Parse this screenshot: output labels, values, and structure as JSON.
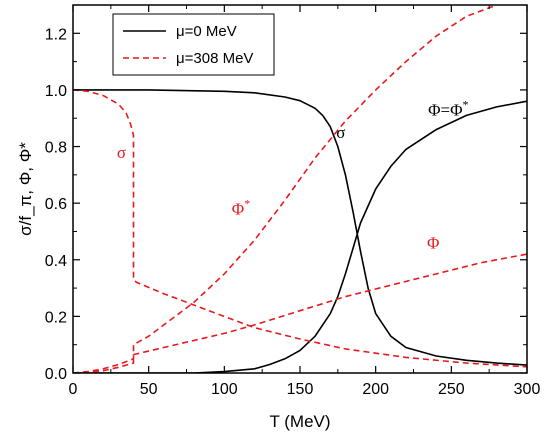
{
  "chart_data": {
    "type": "line",
    "xlabel": "T (MeV)",
    "ylabel": "σ/f_π, Φ, Φ*",
    "xlim": [
      0,
      300
    ],
    "ylim": [
      0,
      1.3
    ],
    "xticks": [
      "0",
      "50",
      "100",
      "150",
      "200",
      "250",
      "300"
    ],
    "yticks": [
      "0.0",
      "0.2",
      "0.4",
      "0.6",
      "0.8",
      "1.0",
      "1.2"
    ],
    "legend": {
      "placement": "top-left"
    },
    "colors": {
      "mu0": "#000000",
      "mu308": "#e8191d"
    },
    "series": [
      {
        "name": "μ=0 MeV",
        "key": "mu0",
        "quantity": "σ",
        "dash": "solid",
        "x": [
          0,
          50,
          100,
          120,
          140,
          150,
          160,
          165,
          170,
          175,
          180,
          185,
          190,
          195,
          200,
          210,
          220,
          240,
          260,
          280,
          300
        ],
        "y": [
          1.0,
          1.0,
          0.995,
          0.99,
          0.975,
          0.962,
          0.935,
          0.91,
          0.87,
          0.8,
          0.7,
          0.57,
          0.43,
          0.3,
          0.21,
          0.13,
          0.09,
          0.06,
          0.045,
          0.035,
          0.028
        ]
      },
      {
        "name": "μ=0 MeV",
        "key": "mu0",
        "quantity": "Φ=Φ*",
        "dash": "solid",
        "x": [
          0,
          80,
          100,
          120,
          130,
          140,
          150,
          160,
          170,
          175,
          180,
          185,
          190,
          200,
          210,
          220,
          240,
          260,
          280,
          300
        ],
        "y": [
          0.0,
          0.0,
          0.005,
          0.015,
          0.03,
          0.05,
          0.08,
          0.13,
          0.21,
          0.27,
          0.35,
          0.44,
          0.53,
          0.65,
          0.73,
          0.79,
          0.86,
          0.91,
          0.94,
          0.96
        ]
      },
      {
        "name": "μ=308 MeV",
        "key": "mu308",
        "quantity": "σ",
        "dash": "dashed",
        "x": [
          0,
          10,
          20,
          30,
          35,
          38,
          40,
          40,
          40,
          42,
          60,
          80,
          100,
          120,
          150,
          180,
          220,
          260,
          300
        ],
        "y": [
          1.0,
          0.995,
          0.98,
          0.95,
          0.92,
          0.88,
          0.84,
          0.5,
          0.33,
          0.32,
          0.28,
          0.24,
          0.2,
          0.16,
          0.12,
          0.085,
          0.055,
          0.035,
          0.022
        ]
      },
      {
        "name": "μ=308 MeV",
        "key": "mu308",
        "quantity": "Φ*",
        "dash": "dashed",
        "x": [
          0,
          10,
          20,
          30,
          40,
          40,
          50,
          60,
          80,
          100,
          120,
          140,
          160,
          180,
          200,
          220,
          240,
          260,
          280
        ],
        "y": [
          0.0,
          0.005,
          0.015,
          0.03,
          0.05,
          0.1,
          0.13,
          0.17,
          0.25,
          0.35,
          0.47,
          0.61,
          0.76,
          0.89,
          1.0,
          1.1,
          1.19,
          1.26,
          1.3
        ]
      },
      {
        "name": "μ=308 MeV",
        "key": "mu308",
        "quantity": "Φ",
        "dash": "dashed",
        "x": [
          0,
          10,
          20,
          30,
          40,
          40,
          60,
          80,
          100,
          120,
          150,
          180,
          210,
          240,
          270,
          300
        ],
        "y": [
          0.0,
          0.002,
          0.008,
          0.02,
          0.035,
          0.065,
          0.09,
          0.115,
          0.14,
          0.17,
          0.22,
          0.27,
          0.31,
          0.35,
          0.39,
          0.42
        ]
      }
    ],
    "annotations": [
      {
        "text": "σ",
        "x": 177,
        "y": 0.83,
        "key": "mu0"
      },
      {
        "text": "Φ=Φ*",
        "x": 248,
        "y": 0.91,
        "key": "mu0"
      },
      {
        "text": "σ",
        "x": 32,
        "y": 0.76,
        "key": "mu308"
      },
      {
        "text": "Φ*",
        "x": 111,
        "y": 0.56,
        "key": "mu308"
      },
      {
        "text": "Φ",
        "x": 238,
        "y": 0.44,
        "key": "mu308"
      }
    ]
  }
}
